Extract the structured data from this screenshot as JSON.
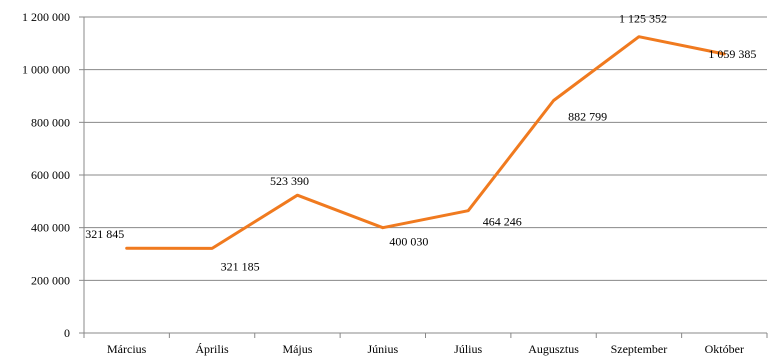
{
  "chart_data": {
    "type": "line",
    "title": "",
    "xlabel": "",
    "ylabel": "",
    "categories": [
      "Március",
      "Április",
      "Május",
      "Június",
      "Július",
      "Augusztus",
      "Szeptember",
      "Október"
    ],
    "series": [
      {
        "values": [
          321845,
          321185,
          523390,
          400030,
          464246,
          882799,
          1125352,
          1059385
        ],
        "data_labels": [
          "321 845",
          "321 185",
          "523 390",
          "400 030",
          "464 246",
          "882 799",
          "1 125 352",
          "1 059 385"
        ],
        "color": "#F07A1F"
      }
    ],
    "ylim": [
      0,
      1200000
    ],
    "y_ticks": [
      0,
      200000,
      400000,
      600000,
      800000,
      1000000,
      1200000
    ],
    "y_tick_labels": [
      "0",
      "200 000",
      "400 000",
      "600 000",
      "800 000",
      "1 000 000",
      "1 200 000"
    ],
    "grid": true,
    "legend": "none",
    "gridline_color": "#888888"
  }
}
